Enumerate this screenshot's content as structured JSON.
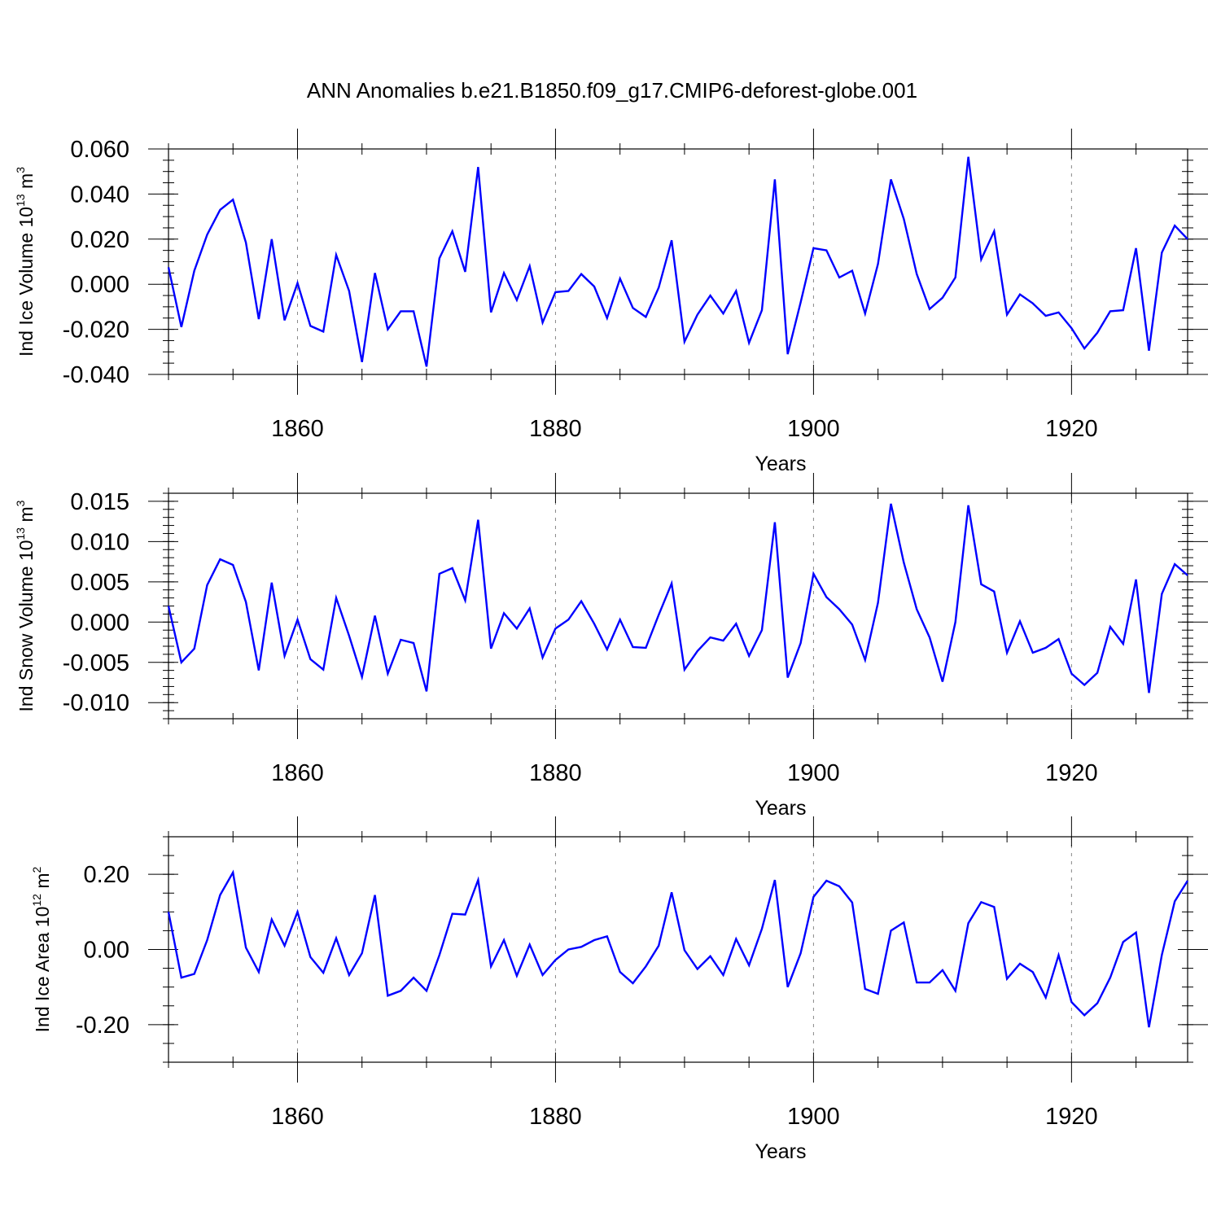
{
  "figure": {
    "title": "ANN Anomalies b.e21.B1850.f09_g17.CMIP6-deforest-globe.001"
  },
  "chart_data": [
    {
      "type": "line",
      "title": "ANN Anomalies b.e21.B1850.f09_g17.CMIP6-deforest-globe.001",
      "xlabel": "Years",
      "ylabel": {
        "base": "Ind Ice Volume 10",
        "exp": "13",
        "unit": " m",
        "unit_exp": "3"
      },
      "xlim": [
        1850,
        1929
      ],
      "ylim": [
        -0.04,
        0.06
      ],
      "xticks": [
        1860,
        1880,
        1900,
        1920
      ],
      "xtick_labels": [
        "1860",
        "1880",
        "1900",
        "1920"
      ],
      "yticks": [
        -0.04,
        -0.02,
        0.0,
        0.02,
        0.04,
        0.06
      ],
      "ytick_labels": [
        "-0.040",
        "-0.020",
        "0.000",
        "0.020",
        "0.040",
        "0.060"
      ],
      "ymin_ticks": 0.005,
      "grid": "dashed vertical at major x ticks",
      "line_color": "#0000ff",
      "x_start": 1850,
      "values": [
        0.0075,
        -0.019,
        0.006,
        0.022,
        0.033,
        0.0375,
        0.0185,
        -0.0155,
        0.02,
        -0.016,
        0.0005,
        -0.0185,
        -0.021,
        0.013,
        -0.003,
        -0.0345,
        0.005,
        -0.02,
        -0.012,
        -0.012,
        -0.0365,
        0.0115,
        0.0235,
        0.0055,
        0.052,
        -0.0125,
        0.005,
        -0.007,
        0.008,
        -0.017,
        -0.0035,
        -0.003,
        0.0045,
        -0.001,
        -0.015,
        0.0025,
        -0.0105,
        -0.0145,
        -0.0015,
        0.0195,
        -0.0255,
        -0.0135,
        -0.005,
        -0.013,
        -0.003,
        -0.026,
        -0.0115,
        0.0465,
        -0.031,
        -0.008,
        0.016,
        0.015,
        0.003,
        0.006,
        -0.013,
        0.009,
        0.0465,
        0.029,
        0.0045,
        -0.011,
        -0.006,
        0.003,
        0.0565,
        0.011,
        0.0235,
        -0.0135,
        -0.0045,
        -0.0085,
        -0.014,
        -0.0125,
        -0.0195,
        -0.0285,
        -0.0215,
        -0.012,
        -0.0115,
        0.016,
        -0.0295,
        0.014,
        0.026,
        0.02
      ]
    },
    {
      "type": "line",
      "xlabel": "Years",
      "ylabel": {
        "base": "Ind Snow Volume 10",
        "exp": "13",
        "unit": " m",
        "unit_exp": "3"
      },
      "xlim": [
        1850,
        1929
      ],
      "ylim": [
        -0.012,
        0.016
      ],
      "xticks": [
        1860,
        1880,
        1900,
        1920
      ],
      "xtick_labels": [
        "1860",
        "1880",
        "1900",
        "1920"
      ],
      "yticks": [
        -0.01,
        -0.005,
        0.0,
        0.005,
        0.01,
        0.015
      ],
      "ytick_labels": [
        "-0.010",
        "-0.005",
        "0.000",
        "0.005",
        "0.010",
        "0.015"
      ],
      "ymin_ticks": 0.001,
      "grid": "dashed vertical at major x ticks",
      "line_color": "#0000ff",
      "x_start": 1850,
      "values": [
        0.002,
        -0.005,
        -0.0033,
        0.0046,
        0.0078,
        0.0071,
        0.0025,
        -0.006,
        0.0049,
        -0.0042,
        0.0003,
        -0.0046,
        -0.0059,
        0.003,
        -0.0017,
        -0.0068,
        0.0008,
        -0.0064,
        -0.0022,
        -0.0026,
        -0.0086,
        0.006,
        0.0067,
        0.0027,
        0.0127,
        -0.0033,
        0.0011,
        -0.0008,
        0.0017,
        -0.0044,
        -0.0008,
        0.0003,
        0.0026,
        -0.0002,
        -0.0034,
        0.0003,
        -0.0031,
        -0.0032,
        0.0009,
        0.0048,
        -0.0059,
        -0.0036,
        -0.0019,
        -0.0023,
        -0.0002,
        -0.0042,
        -0.001,
        0.0124,
        -0.0069,
        -0.0026,
        0.006,
        0.0031,
        0.0016,
        -0.0003,
        -0.0047,
        0.0024,
        0.0147,
        0.0074,
        0.0016,
        -0.0019,
        -0.0074,
        0.0,
        0.0145,
        0.0047,
        0.0038,
        -0.0038,
        0.0001,
        -0.0038,
        -0.0032,
        -0.0021,
        -0.0064,
        -0.0078,
        -0.0063,
        -0.0006,
        -0.0027,
        0.0053,
        -0.0088,
        0.0035,
        0.0072,
        0.0058
      ]
    },
    {
      "type": "line",
      "xlabel": "Years",
      "ylabel": {
        "base": "Ind Ice Area 10",
        "exp": "12",
        "unit": " m",
        "unit_exp": "2"
      },
      "xlim": [
        1850,
        1929
      ],
      "ylim": [
        -0.3,
        0.3
      ],
      "xticks": [
        1860,
        1880,
        1900,
        1920
      ],
      "xtick_labels": [
        "1860",
        "1880",
        "1900",
        "1920"
      ],
      "yticks": [
        -0.2,
        0.0,
        0.2
      ],
      "ytick_labels": [
        "-0.20",
        "0.00",
        "0.20"
      ],
      "ymin_ticks": 0.05,
      "grid": "dashed vertical at major x ticks",
      "line_color": "#0000ff",
      "x_start": 1850,
      "values": [
        0.1,
        -0.075,
        -0.065,
        0.025,
        0.145,
        0.205,
        0.005,
        -0.06,
        0.08,
        0.01,
        0.1,
        -0.02,
        -0.062,
        0.03,
        -0.068,
        -0.01,
        0.145,
        -0.123,
        -0.11,
        -0.075,
        -0.11,
        -0.015,
        0.095,
        0.093,
        0.185,
        -0.045,
        0.025,
        -0.07,
        0.013,
        -0.068,
        -0.028,
        0.0,
        0.007,
        0.025,
        0.035,
        -0.06,
        -0.09,
        -0.045,
        0.01,
        0.152,
        -0.002,
        -0.052,
        -0.018,
        -0.068,
        0.028,
        -0.042,
        0.055,
        0.185,
        -0.1,
        -0.01,
        0.14,
        0.183,
        0.168,
        0.125,
        -0.105,
        -0.118,
        0.05,
        0.072,
        -0.088,
        -0.088,
        -0.055,
        -0.11,
        0.07,
        0.126,
        0.113,
        -0.078,
        -0.038,
        -0.06,
        -0.128,
        -0.015,
        -0.14,
        -0.175,
        -0.143,
        -0.075,
        0.02,
        0.045,
        -0.207,
        -0.015,
        0.128,
        0.183
      ]
    }
  ]
}
